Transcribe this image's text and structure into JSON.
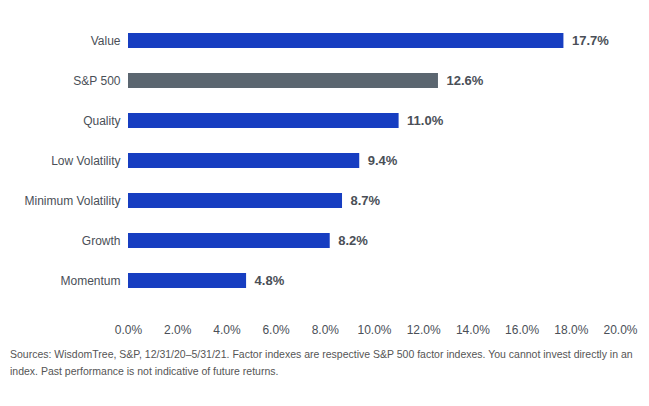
{
  "chart_data": {
    "type": "bar",
    "orientation": "horizontal",
    "categories": [
      "Value",
      "S&P 500",
      "Quality",
      "Low Volatility",
      "Minimum Volatility",
      "Growth",
      "Momentum"
    ],
    "values": [
      17.7,
      12.6,
      11.0,
      9.4,
      8.7,
      8.2,
      4.8
    ],
    "value_labels": [
      "17.7%",
      "12.6%",
      "11.0%",
      "9.4%",
      "8.7%",
      "8.2%",
      "4.8%"
    ],
    "colors": [
      "#173ec1",
      "#5b6670",
      "#173ec1",
      "#173ec1",
      "#173ec1",
      "#173ec1",
      "#173ec1"
    ],
    "xlim": [
      0,
      20
    ],
    "xticks": [
      {
        "value": 0,
        "label": "0.0%"
      },
      {
        "value": 2,
        "label": "2.0%"
      },
      {
        "value": 4,
        "label": "4.0%"
      },
      {
        "value": 6,
        "label": "6.0%"
      },
      {
        "value": 8,
        "label": "8.0%"
      },
      {
        "value": 10,
        "label": "10.0%"
      },
      {
        "value": 12,
        "label": "12.0%"
      },
      {
        "value": 14,
        "label": "14.0%"
      },
      {
        "value": 16,
        "label": "16.0%"
      },
      {
        "value": 18,
        "label": "18.0%"
      },
      {
        "value": 20,
        "label": "20.0%"
      }
    ],
    "grid": false,
    "data_labels": true,
    "caption": "Sources: WisdomTree, S&P, 12/31/20–5/31/21. Factor indexes are respective S&P 500 factor indexes. You cannot invest directly in an index. Past performance is not indicative of future returns."
  }
}
